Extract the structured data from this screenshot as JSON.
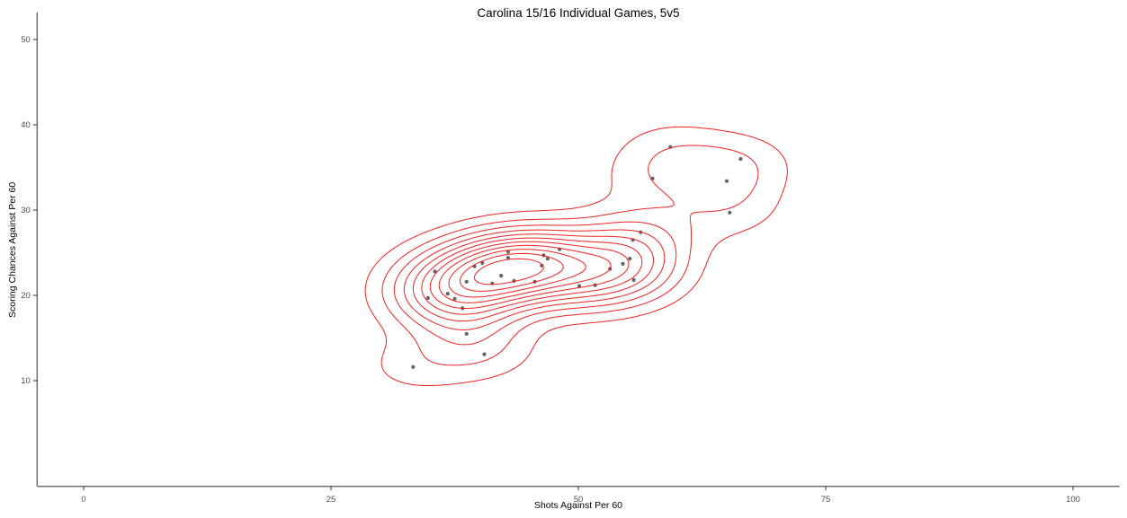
{
  "chart_data": {
    "type": "scatter",
    "subtype": "2d-density-contour",
    "title": "Carolina 15/16 Individual Games, 5v5",
    "xlabel": "Shots Against Per 60",
    "ylabel": "Scoring Chances Against Per 60",
    "xlim": [
      -4.7,
      104.7
    ],
    "ylim": [
      -2.4,
      53.2
    ],
    "x_ticks": [
      0,
      25,
      50,
      75,
      100
    ],
    "y_ticks": [
      10,
      20,
      30,
      40,
      50
    ],
    "grid": false,
    "legend": "none",
    "background": "#ffffff",
    "point_color": "#4d4d4d",
    "axis_color": "#6e6e6e",
    "tick_color": "#333333",
    "tick_label_color": "#4d4d4d",
    "contours": {
      "color": "#ee2222",
      "levels": 11,
      "bandwidth_x": 4.2,
      "bandwidth_y": 2.6
    },
    "points": [
      [
        33.3,
        11.6
      ],
      [
        34.8,
        19.7
      ],
      [
        37.5,
        19.6
      ],
      [
        38.3,
        18.5
      ],
      [
        38.7,
        15.5
      ],
      [
        40.5,
        13.1
      ],
      [
        35.5,
        22.8
      ],
      [
        36.8,
        20.2
      ],
      [
        38.7,
        21.6
      ],
      [
        39.5,
        23.4
      ],
      [
        40.3,
        23.8
      ],
      [
        41.3,
        21.4
      ],
      [
        42.2,
        22.3
      ],
      [
        42.9,
        25.1
      ],
      [
        42.9,
        24.4
      ],
      [
        43.5,
        21.7
      ],
      [
        45.6,
        21.6
      ],
      [
        46.3,
        23.5
      ],
      [
        46.5,
        24.7
      ],
      [
        46.9,
        24.3
      ],
      [
        48.1,
        25.4
      ],
      [
        50.1,
        21.1
      ],
      [
        51.7,
        21.2
      ],
      [
        53.2,
        23.1
      ],
      [
        54.5,
        23.7
      ],
      [
        55.2,
        24.3
      ],
      [
        55.5,
        26.5
      ],
      [
        56.3,
        27.4
      ],
      [
        55.6,
        21.8
      ],
      [
        59.3,
        37.4
      ],
      [
        66.4,
        36.0
      ],
      [
        57.5,
        33.7
      ],
      [
        65.0,
        33.4
      ],
      [
        65.3,
        29.7
      ]
    ]
  }
}
